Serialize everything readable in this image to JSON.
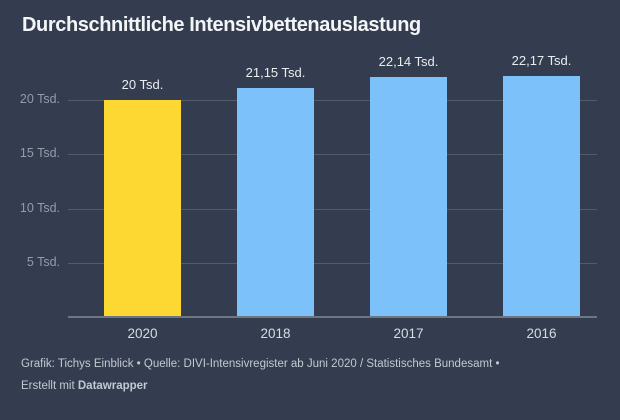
{
  "title": "Durchschnittliche Intensivbettenauslastung",
  "chart_data": {
    "type": "bar",
    "categories": [
      "2020",
      "2018",
      "2017",
      "2016"
    ],
    "values": [
      20,
      21.15,
      22.14,
      22.17
    ],
    "value_labels": [
      "20 Tsd.",
      "21,15 Tsd.",
      "22,14 Tsd.",
      "22,17 Tsd."
    ],
    "highlighted_category": "2020",
    "bar_colors": [
      "#FDD732",
      "#7DC1FB",
      "#7DC1FB",
      "#7DC1FB"
    ],
    "yticks": [
      5,
      10,
      15,
      20
    ],
    "ytick_labels": [
      "5 Tsd.",
      "10 Tsd.",
      "15 Tsd.",
      "20 Tsd."
    ],
    "ylim": [
      0,
      23.5
    ],
    "grid": true,
    "legend": "none",
    "xlabel": "",
    "ylabel": ""
  },
  "footer": {
    "line1": "Grafik: Tichys Einblick • Quelle: DIVI-Intensivregister ab Juni 2020 / Statistisches Bundesamt •",
    "line2_prefix": "Erstellt mit ",
    "line2_bold": "Datawrapper"
  },
  "colors": {
    "background": "#333D4F",
    "highlight": "#FDD732",
    "series": "#7DC1FB",
    "gridline": "#525B6A",
    "axis_line": "#6E7684",
    "title_text": "#F3F5F7",
    "tick_text": "#939CA8",
    "category_text": "#D7DCE1",
    "value_text": "#EAEDF0",
    "footer_text": "#C3C9D0"
  }
}
